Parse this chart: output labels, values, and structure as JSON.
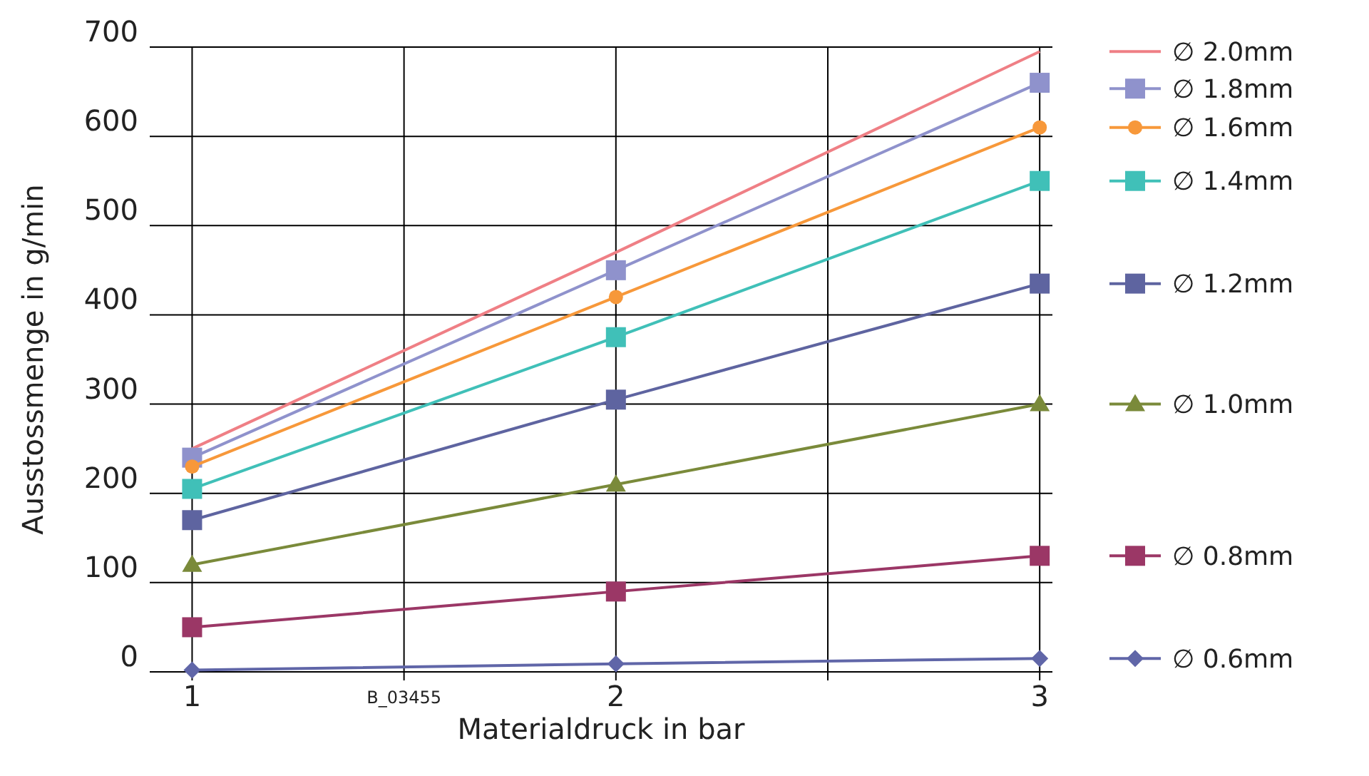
{
  "chart_data": {
    "type": "line",
    "xlabel": "Materialdruck in bar",
    "ylabel": "Ausstossmenge in g/min",
    "x": [
      1,
      2,
      3
    ],
    "xlim": [
      0.9,
      3.03
    ],
    "xticks": [
      1,
      {
        "value": 1.5,
        "label": null
      },
      2,
      {
        "value": 2.5,
        "label": null
      },
      3
    ],
    "ylim": [
      0,
      700
    ],
    "yticks": [
      0,
      100,
      200,
      300,
      400,
      500,
      600,
      700
    ],
    "grid": true,
    "legend": "right",
    "annotations": [
      {
        "text": "B_03455",
        "x": 1.5,
        "y": 0
      }
    ],
    "series": [
      {
        "name": "∅ 2.0mm",
        "color": "#ef7f85",
        "marker": "none",
        "values": [
          250,
          470,
          695
        ]
      },
      {
        "name": "∅ 1.8mm",
        "color": "#8f92cc",
        "marker": "square",
        "values": [
          240,
          450,
          660
        ]
      },
      {
        "name": "∅ 1.6mm",
        "color": "#f7983a",
        "marker": "circle",
        "values": [
          230,
          420,
          610
        ]
      },
      {
        "name": "∅ 1.4mm",
        "color": "#40c0b8",
        "marker": "square",
        "values": [
          205,
          375,
          550
        ]
      },
      {
        "name": "∅ 1.2mm",
        "color": "#5e64a0",
        "marker": "square",
        "values": [
          170,
          305,
          435
        ]
      },
      {
        "name": "∅ 1.0mm",
        "color": "#7a8a3a",
        "marker": "triangle",
        "values": [
          120,
          210,
          300
        ]
      },
      {
        "name": "∅ 0.8mm",
        "color": "#9b3766",
        "marker": "square",
        "values": [
          50,
          90,
          130
        ]
      },
      {
        "name": "∅ 0.6mm",
        "color": "#6066a8",
        "marker": "diamond",
        "values": [
          2,
          9,
          15
        ]
      }
    ]
  }
}
